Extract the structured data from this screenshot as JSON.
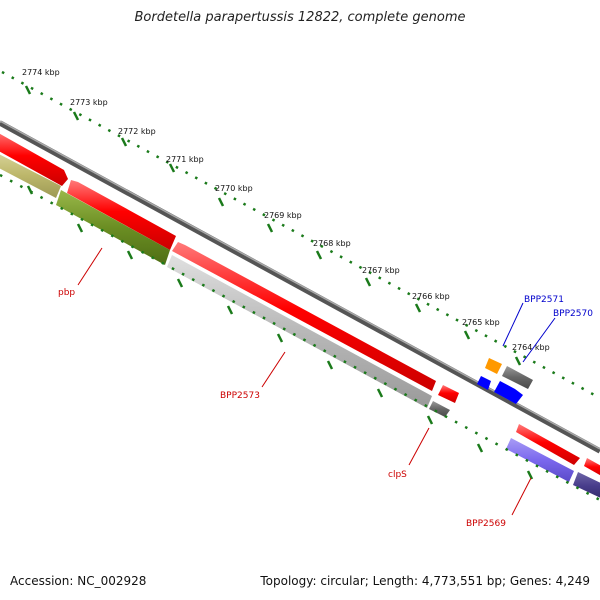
{
  "title": "Bordetella parapertussis 12822, complete genome",
  "footer": {
    "accession": "Accession: NC_002928",
    "topology": "Topology: circular; Length: 4,773,551 bp; Genes: 4,249"
  },
  "scale": {
    "tick_labels": [
      "2774 kbp",
      "2773 kbp",
      "2772 kbp",
      "2771 kbp",
      "2770 kbp",
      "2769 kbp",
      "2768 kbp",
      "2767 kbp",
      "2766 kbp",
      "2765 kbp",
      "2764 kbp"
    ]
  },
  "gene_labels": [
    {
      "text": "pbp",
      "color": "#cc0000"
    },
    {
      "text": "BPP2573",
      "color": "#cc0000"
    },
    {
      "text": "clpS",
      "color": "#cc0000"
    },
    {
      "text": "BPP2569",
      "color": "#cc0000"
    },
    {
      "text": "BPP2571",
      "color": "#0000cc"
    },
    {
      "text": "BPP2570",
      "color": "#0000cc"
    }
  ],
  "colors": {
    "cds": "#ff0000",
    "backbone": "#777777",
    "scale_ticks": "#1a7a1a",
    "gene_olive": "#6b8e23",
    "gene_khaki": "#bdb76b",
    "gene_gray": "#b8b8b8",
    "gene_darkgray": "#666666",
    "gene_orange": "#ff9900",
    "gene_blue": "#0000ff",
    "gene_slate": "#7b68ee",
    "gene_navy": "#483d8b"
  }
}
